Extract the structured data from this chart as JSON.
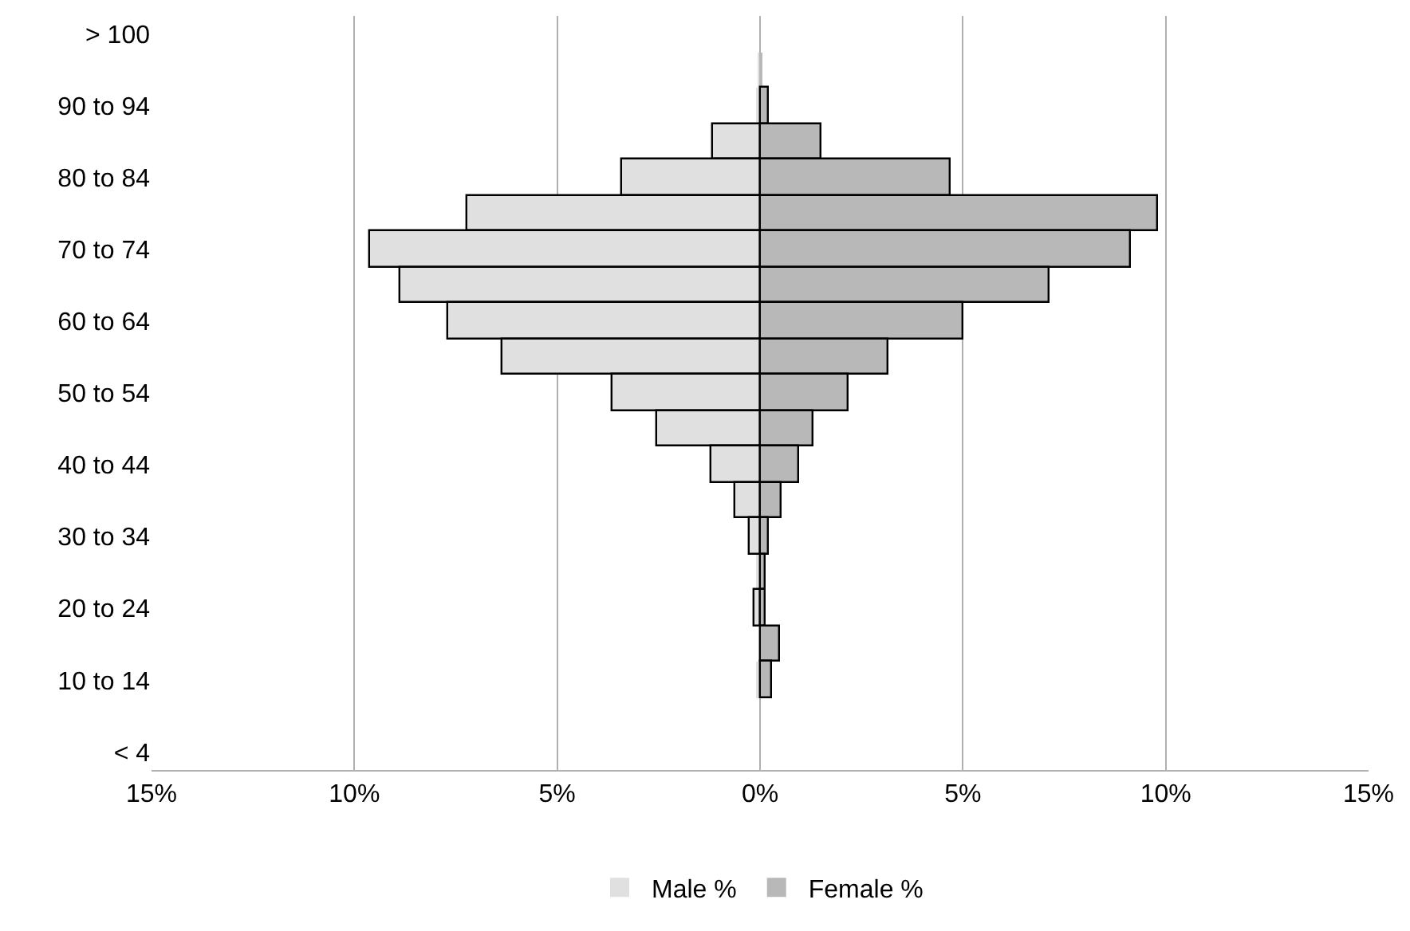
{
  "chart_data": {
    "type": "bar",
    "orientation": "horizontal",
    "stacked": true,
    "categories": [
      "> 100",
      null,
      "90 to 94",
      null,
      "80 to 84",
      null,
      "70 to 74",
      null,
      "60 to 64",
      null,
      "50 to 54",
      null,
      "40 to 44",
      null,
      "30 to 34",
      null,
      "20 to 24",
      null,
      "10 to 14",
      null,
      "< 4"
    ],
    "series": [
      {
        "name": "Male %",
        "color": "#e0e0e0",
        "values": [
          null,
          -0.05,
          -0.1,
          -1.15,
          -3.4,
          -7.2,
          -9.6,
          -8.85,
          -7.7,
          -6.35,
          -3.65,
          -2.55,
          -1.2,
          -0.6,
          -0.25,
          -0.1,
          -0.15,
          null,
          -0.1,
          null,
          null
        ]
      },
      {
        "name": "Female %",
        "color": "#b8b8b8",
        "values": [
          null,
          0.02,
          0.2,
          1.5,
          4.7,
          9.8,
          9.15,
          7.15,
          5.0,
          3.15,
          2.2,
          1.3,
          0.95,
          0.55,
          0.2,
          0.15,
          0.15,
          0.5,
          0.3,
          null,
          null
        ]
      }
    ],
    "xlim": [
      -15,
      15
    ],
    "xticks": [
      {
        "value": -15,
        "label": "15%"
      },
      {
        "value": -10,
        "label": "10%"
      },
      {
        "value": -5,
        "label": "5%"
      },
      {
        "value": 0,
        "label": "0%"
      },
      {
        "value": 5,
        "label": "5%"
      },
      {
        "value": 10,
        "label": "10%"
      },
      {
        "value": 15,
        "label": "15%"
      }
    ],
    "grid": "x",
    "legend": "bottom"
  }
}
